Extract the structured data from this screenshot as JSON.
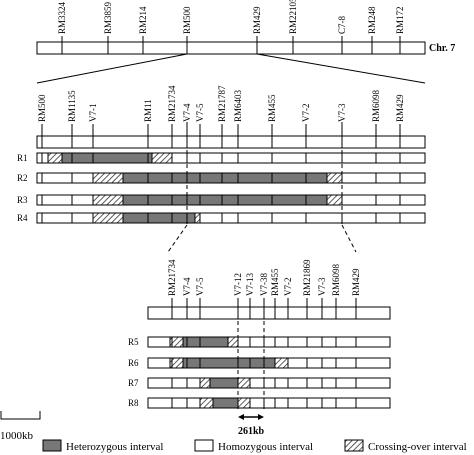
{
  "chromosome": {
    "label": "Chr. 7",
    "markers": [
      "RM3324",
      "RM3859",
      "RM214",
      "RM500",
      "RM429",
      "RM22105",
      "C7-8",
      "RM248",
      "RM172"
    ]
  },
  "region1": {
    "markers": [
      "RM500",
      "RM1135",
      "V7-1",
      "RM11",
      "RM21734",
      "V7-4",
      "V7-5",
      "RM21787",
      "RM6403",
      "RM455",
      "V7-2",
      "V7-3",
      "RM6098",
      "RM429"
    ],
    "rows": [
      "R1",
      "R2",
      "R3",
      "R4"
    ]
  },
  "region2": {
    "markers": [
      "RM21734",
      "V7-4",
      "V7-5",
      "V7-12",
      "V7-13",
      "V7-38",
      "RM455",
      "V7-2",
      "RM21869",
      "V7-3",
      "RM6098",
      "RM429"
    ],
    "rows": [
      "R5",
      "R6",
      "R7",
      "R8"
    ],
    "interval": "261kb"
  },
  "scale": "1000kb",
  "legend": [
    "Heterozygous interval",
    "Homozygous interval",
    "Crossing-over interval"
  ]
}
